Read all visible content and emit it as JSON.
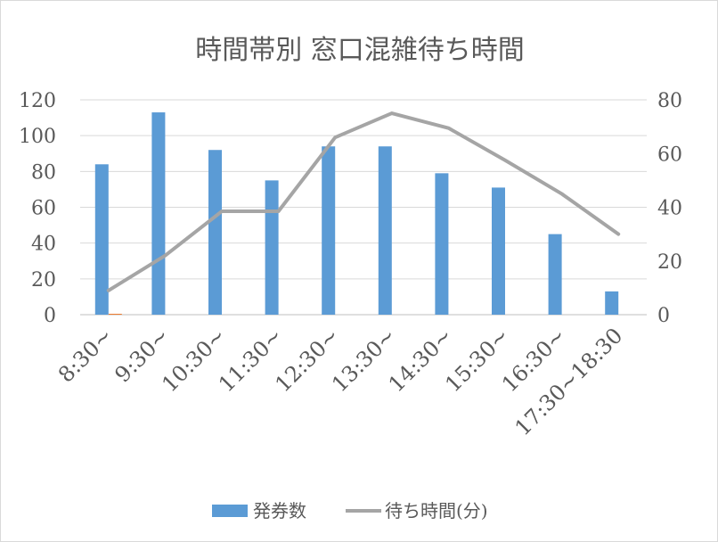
{
  "chart_data": {
    "type": "bar+line",
    "title": "時間帯別 窓口混雑待ち時間",
    "categories": [
      "8:30~",
      "9:30~",
      "10:30~",
      "11:30~",
      "12:30~",
      "13:30~",
      "14:30~",
      "15:30~",
      "16:30~",
      "17:30~18:30"
    ],
    "series": [
      {
        "name": "発券数",
        "type": "bar",
        "axis": "left",
        "color": "#5b9bd5",
        "values": [
          84,
          113,
          92,
          75,
          94,
          94,
          79,
          71,
          45,
          13
        ]
      },
      {
        "name": "",
        "type": "bar",
        "axis": "left",
        "color": "#ed7d31",
        "values": [
          0.5,
          0,
          0,
          0,
          0,
          0,
          0,
          0,
          0,
          0
        ]
      },
      {
        "name": "待ち時間(分)",
        "type": "line",
        "axis": "right",
        "color": "#a5a5a5",
        "values": [
          9,
          22,
          38.5,
          38.5,
          66,
          75,
          69.5,
          57.5,
          45,
          30
        ]
      }
    ],
    "y_left": {
      "ylim": [
        0,
        120
      ],
      "ticks": [
        0,
        20,
        40,
        60,
        80,
        100,
        120
      ]
    },
    "y_right": {
      "ylim": [
        0,
        80
      ],
      "ticks": [
        0,
        20,
        40,
        60,
        80
      ]
    },
    "grid": true,
    "legend": "bottom"
  }
}
